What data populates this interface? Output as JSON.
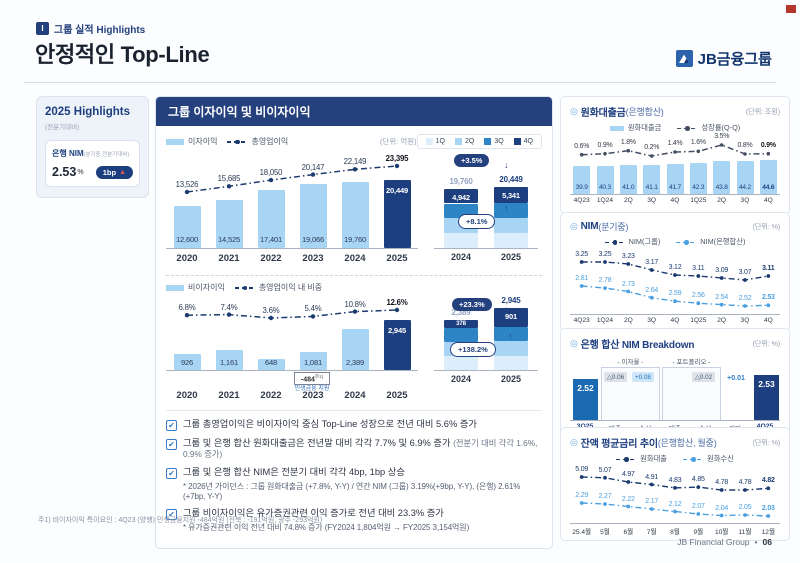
{
  "page": {
    "kicker_badge": "I",
    "kicker": "그룹 실적 Highlights",
    "title": "안정적인 Top-Line",
    "logo_text": "JB금융그룹",
    "footnote": "주1) 비이자이익 특이요인 : 4Q23 (양행) 민생금융지원 -484억원 (전북 : -191억원, 광주 -293억원)",
    "footer_brand": "JB Financial Group",
    "footer_sep": "•",
    "footer_page": "06"
  },
  "sidebar": {
    "title": "2025 Highlights",
    "subtitle": "(전분기대비)",
    "metric": {
      "label": "은행 NIM",
      "label_note": "(분기중,전분기대비)",
      "value": "2.53",
      "value_unit": "%",
      "badge_text": "1bp",
      "badge_arrow": "▲"
    }
  },
  "main_panel": {
    "title": "그룹 이자이익 및 비이자이익",
    "unit": "(단위: 억원)",
    "legend1": {
      "bar": "이자이익",
      "line": "총영업이익"
    },
    "legend2": {
      "bar": "비이자이익",
      "line": "총영업이익 내 비중"
    },
    "q_legend": [
      "1Q",
      "2Q",
      "3Q",
      "4Q"
    ],
    "note_2023": {
      "value": "-484",
      "sup": "주1)",
      "label": "민생금융 지원"
    },
    "bullets": [
      {
        "text": "그룹 총영업이익은 비이자이익 중심 Top-Line 성장으로 전년 대비 5.6% 증가"
      },
      {
        "text": "그룹 및 은행 합산 원화대출금은 전년말 대비 각각 7.7% 및 6.9% 증가",
        "note": "(전분기 대비 각각 1.6%, 0.9% 증가)"
      },
      {
        "text": "그룹 및 은행 합산 NIM은 전분기 대비 각각 4bp, 1bp 상승",
        "sub": "* 2026년 가이던스 : 그룹 원화대출금 (+7.8%, Y-Y) / 연간 NIM (그룹) 3.19%(+9bp, Y-Y), (은행) 2.61%(+7bp, Y-Y)"
      },
      {
        "text": "그룹 비이자이익은 유가증권관련 이익 증가로 전년 대비 23.3% 증가",
        "sub": "* 유가증권관련 이익 전년 대비 74.8% 증가 (FY2024 1,804억원 → FY2025 3,154억원)"
      }
    ]
  },
  "right_panels": [
    {
      "title": "원화대출금",
      "title_note": "(은행합산)",
      "unit": "(단위: 조원)",
      "legend": [
        "원화대출금",
        "성장률(Q-Q)"
      ]
    },
    {
      "title": "NIM",
      "title_note": "(분기중)",
      "unit": "(단위: %)",
      "legend": [
        "NIM(그룹)",
        "NIM(은행합산)"
      ]
    },
    {
      "title": "은행 합산 NIM Breakdown",
      "title_note": "",
      "unit": "(단위: %)"
    },
    {
      "title": "잔액 평균금리 추이",
      "title_note": "(은행합산, 월중)",
      "unit": "(단위: %)",
      "legend": [
        "원화대출",
        "원화수신"
      ]
    }
  ],
  "chart_data": [
    {
      "id": "group_interest_income",
      "type": "bar",
      "unit": "억원",
      "categories": [
        "2020",
        "2021",
        "2022",
        "2023",
        "2024",
        "2025"
      ],
      "series": [
        {
          "name": "이자이익",
          "type": "bar",
          "values": [
            12600,
            14525,
            17401,
            19066,
            19760,
            20449
          ]
        },
        {
          "name": "총영업이익",
          "type": "line",
          "values": [
            13526,
            15685,
            18050,
            20147,
            22149,
            23395
          ]
        }
      ]
    },
    {
      "id": "interest_income_quarterly",
      "type": "stacked_bar",
      "unit": "억원",
      "legend": [
        "1Q",
        "2Q",
        "3Q",
        "4Q"
      ],
      "categories": [
        "2024",
        "2025"
      ],
      "totals": [
        19760,
        20449
      ],
      "q4_values": [
        4942,
        5341
      ],
      "yoy_badge": "+3.5%",
      "q4_badge": "+8.1%"
    },
    {
      "id": "group_noninterest_income",
      "type": "bar",
      "unit": "억원",
      "categories": [
        "2020",
        "2021",
        "2022",
        "2023",
        "2024",
        "2025"
      ],
      "series": [
        {
          "name": "비이자이익",
          "type": "bar",
          "values": [
            926,
            1161,
            648,
            1081,
            2389,
            2945
          ]
        },
        {
          "name": "총영업이익 내 비중",
          "type": "line",
          "unit": "%",
          "values": [
            6.8,
            7.4,
            3.6,
            5.4,
            10.8,
            12.6
          ]
        }
      ]
    },
    {
      "id": "noninterest_income_quarterly",
      "type": "stacked_bar",
      "unit": "억원",
      "legend": [
        "1Q",
        "2Q",
        "3Q",
        "4Q"
      ],
      "categories": [
        "2024",
        "2025"
      ],
      "totals": [
        2389,
        2945
      ],
      "q4_values": [
        378,
        901
      ],
      "yoy_badge": "+23.3%",
      "q4_badge": "+138.2%"
    },
    {
      "id": "krw_loans_bank_combined",
      "type": "bar",
      "unit": "조원",
      "categories": [
        "4Q23",
        "1Q24",
        "2Q",
        "3Q",
        "4Q",
        "1Q25",
        "2Q",
        "3Q",
        "4Q"
      ],
      "series": [
        {
          "name": "원화대출금",
          "type": "bar",
          "values": [
            39.9,
            40.3,
            41.0,
            41.1,
            41.7,
            42.3,
            43.8,
            44.2,
            44.6
          ]
        },
        {
          "name": "성장률(Q-Q)",
          "type": "line",
          "unit": "%",
          "values": [
            0.6,
            0.9,
            1.8,
            0.2,
            1.4,
            1.6,
            3.5,
            0.8,
            0.9
          ]
        }
      ]
    },
    {
      "id": "nim_quarterly",
      "type": "line",
      "unit": "%",
      "categories": [
        "4Q23",
        "1Q24",
        "2Q",
        "3Q",
        "4Q",
        "1Q25",
        "2Q",
        "3Q",
        "4Q"
      ],
      "series": [
        {
          "name": "NIM(그룹)",
          "values": [
            3.25,
            3.25,
            3.23,
            3.17,
            3.12,
            3.11,
            3.09,
            3.07,
            3.11
          ]
        },
        {
          "name": "NIM(은행합산)",
          "values": [
            2.81,
            2.78,
            2.73,
            2.64,
            2.59,
            2.56,
            2.54,
            2.52,
            2.53
          ]
        }
      ]
    },
    {
      "id": "bank_nim_breakdown",
      "type": "waterfall",
      "unit": "%",
      "start": {
        "label": "3Q25",
        "value": "2.52"
      },
      "end": {
        "label": "4Q25",
        "value": "2.53"
      },
      "groups": [
        {
          "label": "- 이자율 -",
          "items": [
            {
              "label": "대출",
              "delta": "△0.06"
            },
            {
              "label": "수신",
              "delta": "+0.08"
            }
          ]
        },
        {
          "label": "- 포트폴리오 -",
          "items": [
            {
              "label": "대출",
              "delta": ""
            },
            {
              "label": "수신",
              "delta": "△0.02"
            }
          ]
        }
      ],
      "other": {
        "label": "기타",
        "delta": "+0.01"
      }
    },
    {
      "id": "avg_balance_rates_monthly",
      "type": "line",
      "unit": "%",
      "categories": [
        "25.4월",
        "5월",
        "6월",
        "7월",
        "8월",
        "9월",
        "10월",
        "11월",
        "12월"
      ],
      "series": [
        {
          "name": "원화대출",
          "values": [
            5.09,
            5.07,
            4.97,
            4.91,
            4.83,
            4.85,
            4.78,
            4.78,
            4.82
          ]
        },
        {
          "name": "원화수신",
          "values": [
            2.29,
            2.27,
            2.22,
            2.17,
            2.12,
            2.07,
            2.04,
            2.05,
            2.03
          ]
        }
      ]
    }
  ]
}
